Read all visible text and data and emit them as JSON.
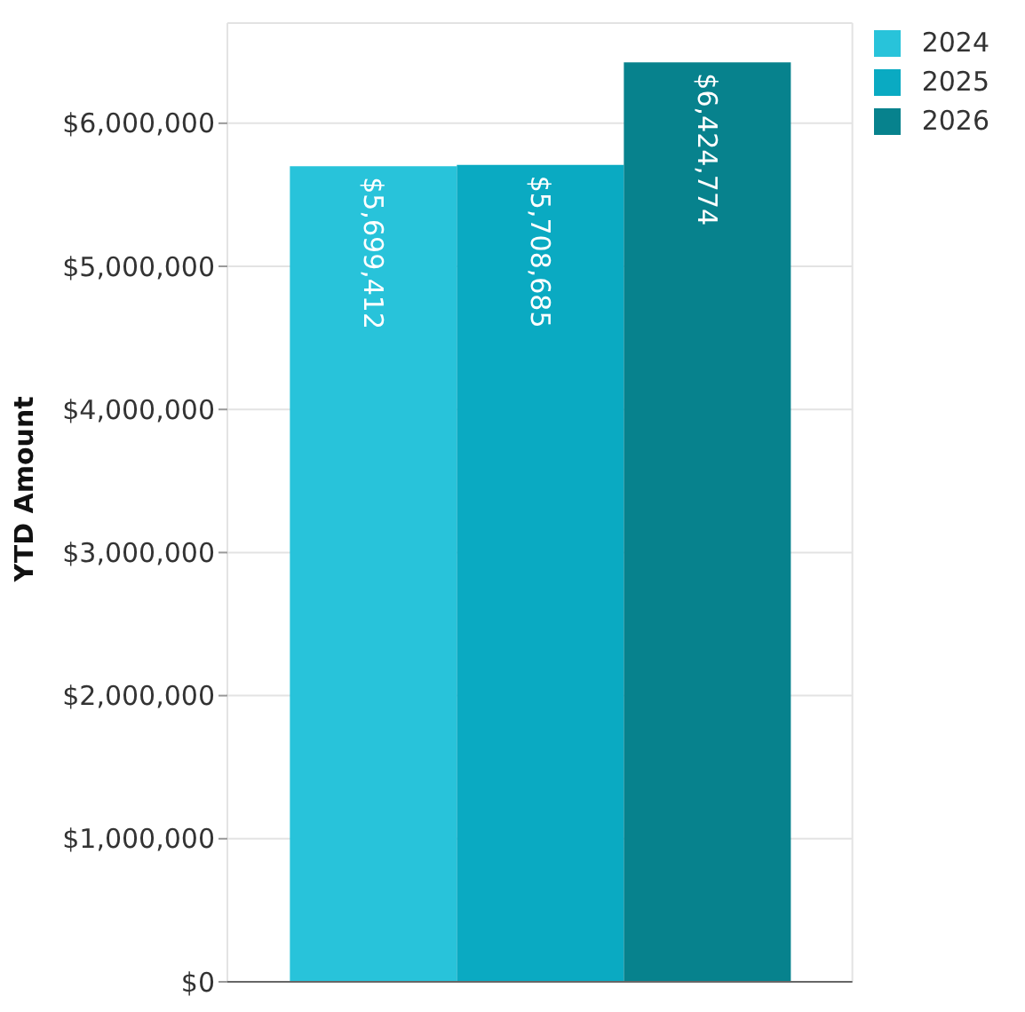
{
  "chart_data": {
    "type": "bar",
    "ylabel": "YTD Amount",
    "categories": [
      null
    ],
    "series": [
      {
        "name": "2024",
        "color": "#28c3da",
        "values": [
          5699412
        ],
        "value_labels": [
          "$5,699,412"
        ]
      },
      {
        "name": "2025",
        "color": "#0aaac2",
        "values": [
          5708685
        ],
        "value_labels": [
          "$5,708,685"
        ]
      },
      {
        "name": "2026",
        "color": "#07828d",
        "values": [
          6424774
        ],
        "value_labels": [
          "$6,424,774"
        ]
      }
    ],
    "ylim": [
      0,
      6700000
    ],
    "yticks": [
      {
        "value": 0,
        "label": "$0"
      },
      {
        "value": 1000000,
        "label": "$1,000,000"
      },
      {
        "value": 2000000,
        "label": "$2,000,000"
      },
      {
        "value": 3000000,
        "label": "$3,000,000"
      },
      {
        "value": 4000000,
        "label": "$4,000,000"
      },
      {
        "value": 5000000,
        "label": "$5,000,000"
      },
      {
        "value": 6000000,
        "label": "$6,000,000"
      }
    ],
    "grid": true,
    "legend": "top right",
    "tick_labels": "y",
    "data_labels": true
  }
}
